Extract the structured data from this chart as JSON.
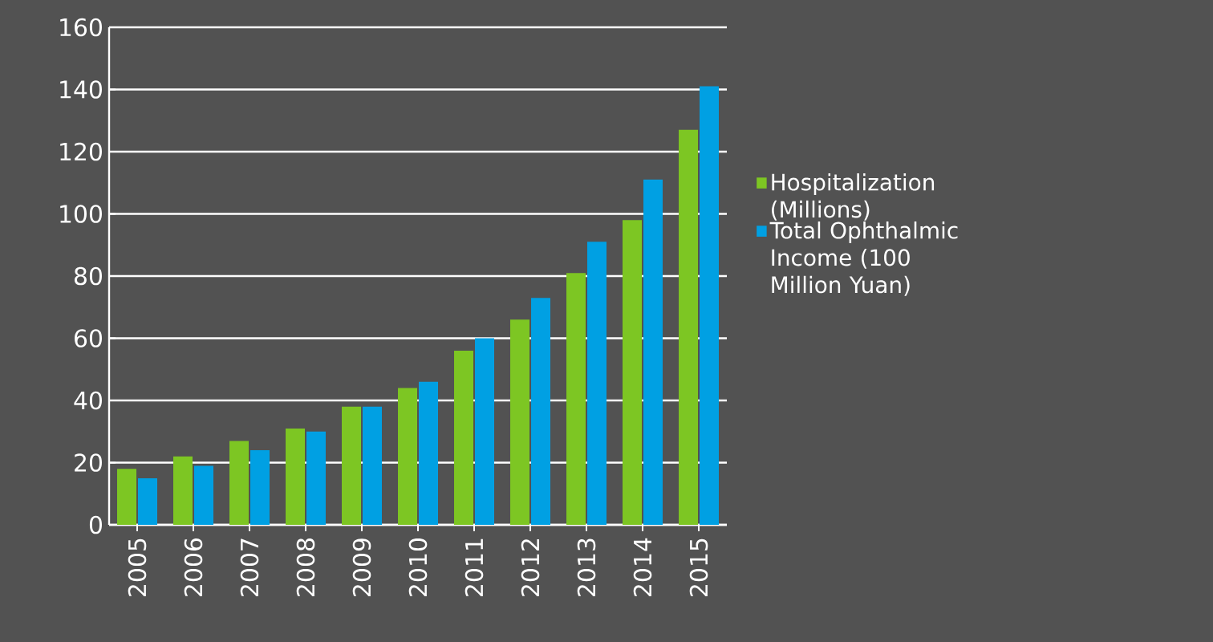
{
  "chart_data": {
    "type": "bar",
    "categories": [
      "2005",
      "2006",
      "2007",
      "2008",
      "2009",
      "2010",
      "2011",
      "2012",
      "2013",
      "2014",
      "2015"
    ],
    "series": [
      {
        "name": "Hospitalization (Millions)",
        "color": "#7dc623",
        "values": [
          18,
          22,
          27,
          31,
          38,
          44,
          56,
          66,
          81,
          98,
          127
        ]
      },
      {
        "name": "Total Ophthalmic Income (100 Million Yuan)",
        "color": "#00a0e3",
        "values": [
          15,
          19,
          24,
          30,
          38,
          46,
          60,
          73,
          91,
          111,
          141
        ]
      }
    ],
    "ylim": [
      0,
      160
    ],
    "yticks": [
      0,
      20,
      40,
      60,
      80,
      100,
      120,
      140,
      160
    ],
    "grid": "y",
    "legend": "right"
  }
}
